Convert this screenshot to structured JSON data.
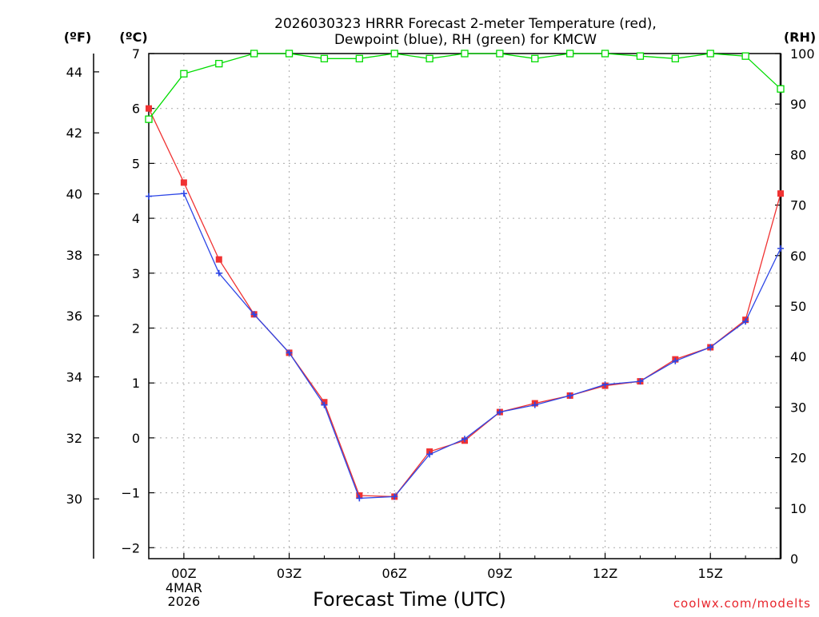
{
  "chart_data": {
    "type": "line",
    "title": "2026030323 HRRR Forecast 2-meter Temperature (red),",
    "subtitle": "Dewpoint (blue), RH (green) for KMCW",
    "xlabel": "Forecast Time (UTC)",
    "credit": "coolwx.com/modelts",
    "units": {
      "fahrenheit": "(ºF)",
      "celsius": "(ºC)",
      "rh": "(RH)"
    },
    "x": [
      -1,
      0,
      1,
      2,
      3,
      4,
      5,
      6,
      7,
      8,
      9,
      10,
      11,
      12,
      13,
      14,
      15,
      16,
      17
    ],
    "xlim": [
      -1,
      17
    ],
    "x_ticks": [
      {
        "x": 0,
        "label": "00Z",
        "extra": [
          "4MAR",
          "2026"
        ]
      },
      {
        "x": 3,
        "label": "03Z",
        "extra": []
      },
      {
        "x": 6,
        "label": "06Z",
        "extra": []
      },
      {
        "x": 9,
        "label": "09Z",
        "extra": []
      },
      {
        "x": 12,
        "label": "12Z",
        "extra": []
      },
      {
        "x": 15,
        "label": "15Z",
        "extra": []
      }
    ],
    "ylim_celsius": [
      -2.2,
      7
    ],
    "y_ticks_celsius": [
      "7",
      "6",
      "5",
      "4",
      "3",
      "2",
      "1",
      "0",
      "−1",
      "−2"
    ],
    "y_ticks_fahrenheit": [
      "44",
      "42",
      "40",
      "38",
      "36",
      "34",
      "32",
      "30"
    ],
    "ylim_rh": [
      0,
      100
    ],
    "y_ticks_rh": [
      "100",
      "90",
      "80",
      "70",
      "60",
      "50",
      "40",
      "30",
      "20",
      "10",
      "0"
    ],
    "series": [
      {
        "name": "Temperature",
        "unit": "C",
        "color": "#f03232",
        "marker": "square-filled",
        "values": [
          6.0,
          4.65,
          3.25,
          2.25,
          1.55,
          0.65,
          -1.05,
          -1.07,
          -0.25,
          -0.05,
          0.47,
          0.63,
          0.77,
          0.95,
          1.03,
          1.43,
          1.65,
          2.15,
          4.45
        ]
      },
      {
        "name": "Dewpoint",
        "unit": "C",
        "color": "#2d46e6",
        "marker": "plus",
        "values": [
          4.4,
          4.45,
          3.0,
          2.25,
          1.55,
          0.6,
          -1.1,
          -1.07,
          -0.3,
          -0.02,
          0.47,
          0.6,
          0.77,
          0.97,
          1.03,
          1.4,
          1.65,
          2.12,
          3.45
        ]
      },
      {
        "name": "RH",
        "unit": "%",
        "color": "#00dc00",
        "marker": "square-open",
        "values": [
          87,
          96,
          98,
          100,
          100,
          99,
          99,
          100,
          99,
          100,
          100,
          99,
          100,
          100,
          99.5,
          99,
          100,
          99.5,
          93
        ]
      }
    ]
  }
}
